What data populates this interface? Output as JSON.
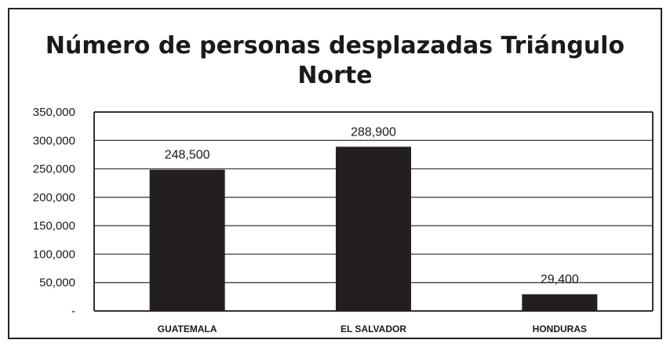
{
  "chart_data": {
    "type": "bar",
    "title_line1": "Número de personas desplazadas Triángulo",
    "title_line2": "Norte",
    "categories": [
      "GUATEMALA",
      "EL SALVADOR",
      "HONDURAS"
    ],
    "values": [
      248500,
      288900,
      29400
    ],
    "data_labels": [
      "248,500",
      "288,900",
      "29,400"
    ],
    "y_ticks": [
      0,
      50000,
      100000,
      150000,
      200000,
      250000,
      300000,
      350000
    ],
    "y_tick_labels": [
      "-",
      "50,000",
      "100,000",
      "150,000",
      "200,000",
      "250,000",
      "300,000",
      "350,000"
    ],
    "ylim": [
      0,
      350000
    ],
    "grid": true,
    "legend": "none",
    "colors": {
      "bar": "#231f20",
      "grid": "#333333",
      "text": "#1a1a1a"
    }
  }
}
